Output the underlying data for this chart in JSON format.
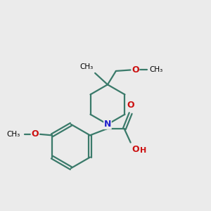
{
  "bg_color": "#ebebeb",
  "bond_color": "#3a7a6a",
  "N_color": "#2020cc",
  "O_color": "#cc1010",
  "text_color": "#000000",
  "line_width": 1.6,
  "figsize": [
    3.0,
    3.0
  ],
  "dpi": 100,
  "xlim": [
    0,
    10
  ],
  "ylim": [
    0,
    10
  ]
}
